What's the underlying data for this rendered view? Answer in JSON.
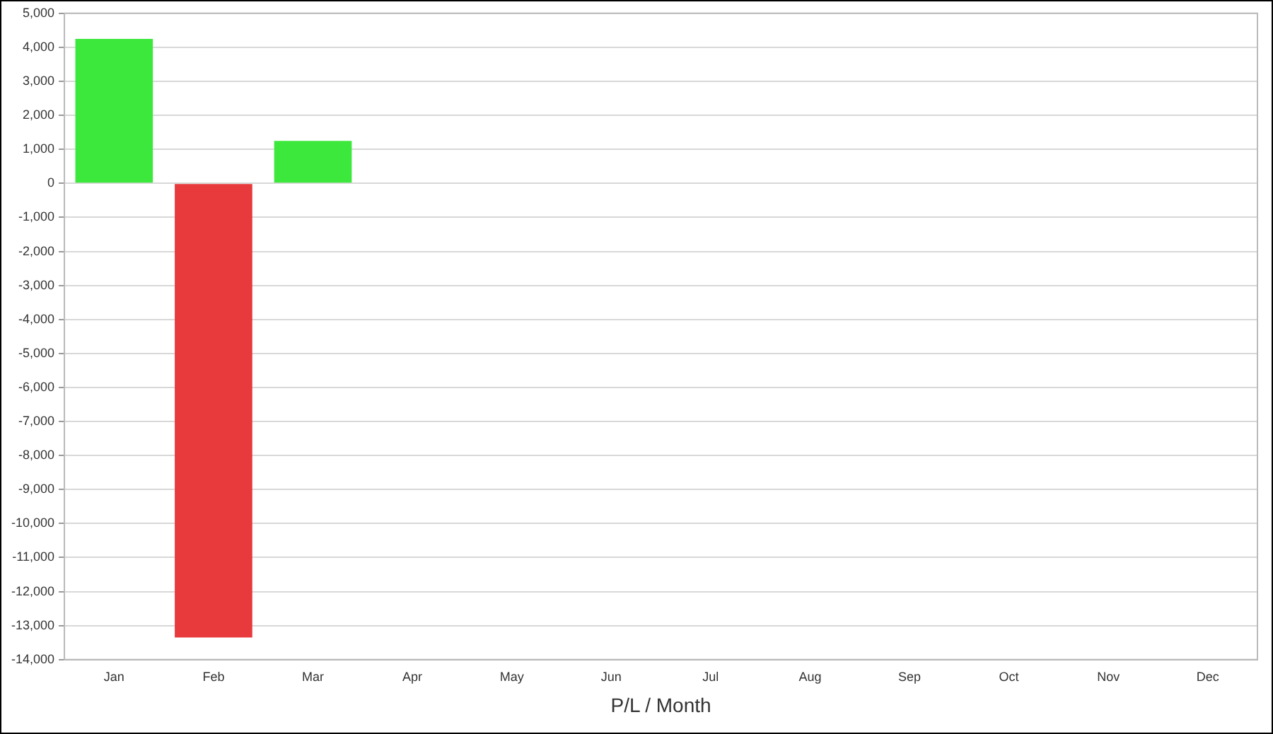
{
  "chart_data": {
    "type": "bar",
    "xlabel": "P/L / Month",
    "categories": [
      "Jan",
      "Feb",
      "Mar",
      "Apr",
      "May",
      "Jun",
      "Jul",
      "Aug",
      "Sep",
      "Oct",
      "Nov",
      "Dec"
    ],
    "values": [
      4250,
      -13350,
      1250,
      null,
      null,
      null,
      null,
      null,
      null,
      null,
      null,
      null
    ],
    "colors": [
      "#3de83d",
      "#e8393c",
      "#3de83d",
      "#3de83d",
      "#3de83d",
      "#3de83d",
      "#3de83d",
      "#3de83d",
      "#3de83d",
      "#3de83d",
      "#3de83d",
      "#3de83d"
    ],
    "ylim": [
      -14000,
      5000
    ],
    "yticks": [
      {
        "value": -14000,
        "label": "-14,000"
      },
      {
        "value": -13000,
        "label": "-13,000"
      },
      {
        "value": -12000,
        "label": "-12,000"
      },
      {
        "value": -11000,
        "label": "-11,000"
      },
      {
        "value": -10000,
        "label": "-10,000"
      },
      {
        "value": -9000,
        "label": "-9,000"
      },
      {
        "value": -8000,
        "label": "-8,000"
      },
      {
        "value": -7000,
        "label": "-7,000"
      },
      {
        "value": -6000,
        "label": "-6,000"
      },
      {
        "value": -5000,
        "label": "-5,000"
      },
      {
        "value": -4000,
        "label": "-4,000"
      },
      {
        "value": -3000,
        "label": "-3,000"
      },
      {
        "value": -2000,
        "label": "-2,000"
      },
      {
        "value": -1000,
        "label": "-1,000"
      },
      0,
      {
        "value": 1000,
        "label": "1,000"
      },
      {
        "value": 2000,
        "label": "2,000"
      },
      {
        "value": 3000,
        "label": "3,000"
      },
      {
        "value": 4000,
        "label": "4,000"
      },
      {
        "value": 5000,
        "label": "5,000"
      }
    ],
    "grid": "y",
    "legend": false
  }
}
